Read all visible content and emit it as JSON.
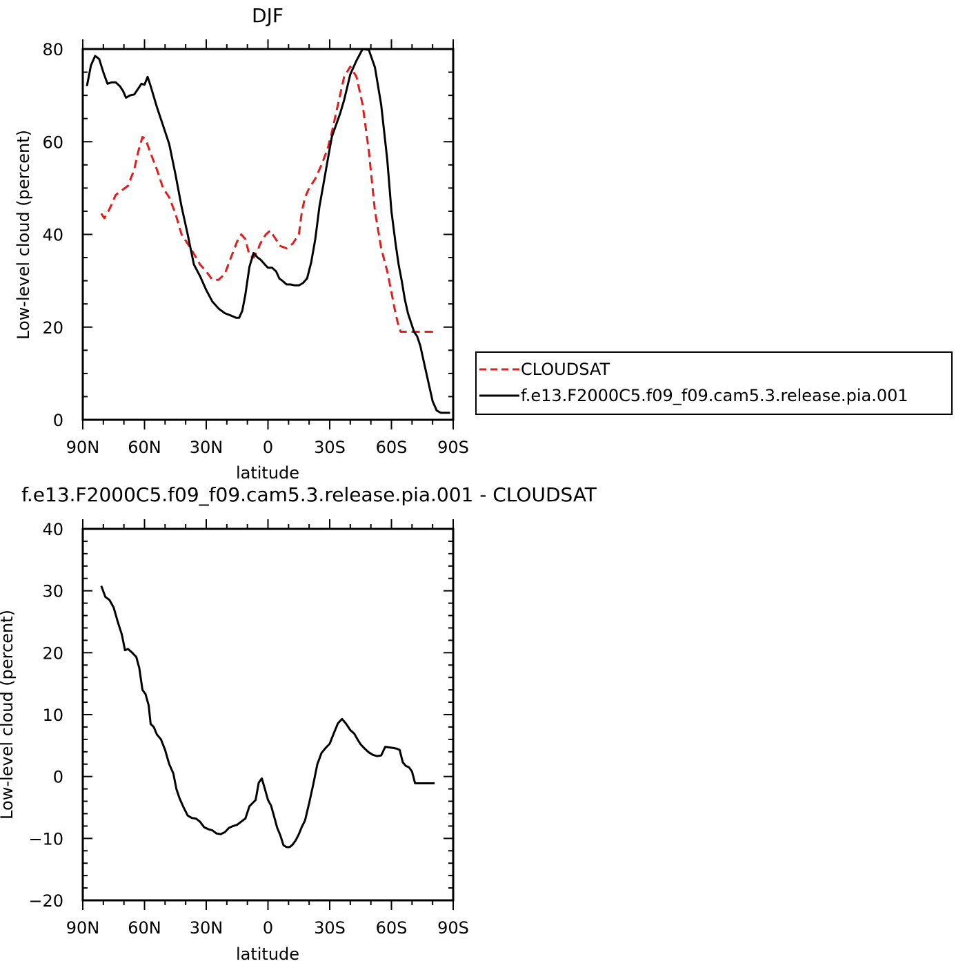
{
  "chart_data": [
    {
      "type": "line",
      "title": "DJF",
      "xlabel": "latitude",
      "ylabel": "Low-level cloud (percent)",
      "ylim": [
        0,
        80
      ],
      "xlim": [
        90,
        -90
      ],
      "x_axis_direction": "north-to-south",
      "xticks": [
        {
          "v": 90,
          "label": "90N"
        },
        {
          "v": 60,
          "label": "60N"
        },
        {
          "v": 30,
          "label": "30N"
        },
        {
          "v": 0,
          "label": "0"
        },
        {
          "v": -30,
          "label": "30S"
        },
        {
          "v": -60,
          "label": "60S"
        },
        {
          "v": -90,
          "label": "90S"
        }
      ],
      "yticks": [
        {
          "v": 0,
          "label": "0"
        },
        {
          "v": 20,
          "label": "20"
        },
        {
          "v": 40,
          "label": "40"
        },
        {
          "v": 60,
          "label": "60"
        },
        {
          "v": 80,
          "label": "80"
        }
      ],
      "legend": {
        "placement": "right",
        "entries": [
          {
            "label": "CLOUDSAT",
            "color": "#e31b1b",
            "dash": "dashed"
          },
          {
            "label": "f.e13.F2000C5.f09_f09.cam5.3.release.pia.001",
            "color": "#000000",
            "dash": "solid"
          }
        ]
      },
      "series": [
        {
          "name": "CLOUDSAT",
          "color": "#e31b1b",
          "dash": "dashed",
          "x": [
            81,
            79.5,
            77,
            74,
            71,
            68,
            65,
            63,
            61,
            59.5,
            57,
            54,
            51,
            48,
            45,
            42,
            39,
            36,
            33,
            30,
            27,
            24,
            21,
            18,
            15,
            13,
            11,
            9,
            7,
            5,
            4,
            2.5,
            1,
            -1,
            -3,
            -6,
            -9,
            -12,
            -15,
            -16.5,
            -18,
            -20,
            -23,
            -26,
            -29,
            -31,
            -33,
            -35,
            -37,
            -40,
            -43,
            -46,
            -49,
            -52,
            -55,
            -58,
            -60,
            -61.5,
            -63,
            -64.5,
            -66,
            -67.5,
            -69,
            -71,
            -73,
            -75,
            -77,
            -79,
            -81
          ],
          "y": [
            44.5,
            43.5,
            45.5,
            48.5,
            49.5,
            50.5,
            54,
            58,
            61,
            60.5,
            57.5,
            54,
            50,
            48,
            44.5,
            40,
            38,
            35.8,
            33.5,
            32,
            30.2,
            30.2,
            31.5,
            35,
            38.5,
            40,
            39,
            35.5,
            35,
            36.5,
            37.8,
            39,
            40,
            40.8,
            39.5,
            37.5,
            37,
            38,
            40,
            45,
            48,
            50,
            52,
            55,
            58.5,
            62,
            66,
            70,
            74,
            76.2,
            74,
            68,
            58,
            45,
            37,
            32,
            27.5,
            24,
            21,
            19,
            19,
            19,
            19,
            19,
            19,
            19,
            19,
            19,
            19
          ],
          "y_note": ""
        },
        {
          "name": "f.e13.F2000C5.f09_f09.cam5.3.release.pia.001",
          "color": "#000000",
          "dash": "solid",
          "x": [
            88,
            86,
            84,
            83,
            82,
            80,
            78,
            76,
            74,
            72,
            70.5,
            69,
            67,
            65,
            63,
            61.5,
            60,
            58.5,
            57,
            54,
            51,
            48,
            45,
            42,
            39,
            36,
            33,
            30,
            27,
            24,
            21,
            18,
            15.5,
            14,
            12.5,
            11,
            9,
            7,
            5,
            3.5,
            1.5,
            0,
            -2,
            -4,
            -5.5,
            -7,
            -9,
            -11,
            -13,
            -15,
            -17,
            -19,
            -21,
            -23,
            -25,
            -27,
            -29,
            -31,
            -33,
            -35,
            -37,
            -40,
            -43,
            -46,
            -49,
            -52,
            -55,
            -58,
            -60,
            -62,
            -63.5,
            -65,
            -66.5,
            -68,
            -69.5,
            -71,
            -72.5,
            -74,
            -76,
            -78,
            -80,
            -82,
            -84,
            -85.5,
            -87,
            -88.5
          ],
          "y": [
            72,
            76.5,
            78.5,
            78.2,
            77.8,
            75,
            72.5,
            72.8,
            72.8,
            72,
            71,
            69.5,
            70,
            70.2,
            71.5,
            72.5,
            72.3,
            74,
            72,
            67.5,
            63.5,
            59.5,
            53,
            46,
            40,
            33.5,
            31,
            28,
            25.5,
            24,
            23,
            22.5,
            22,
            22,
            23.5,
            27,
            33,
            36,
            35,
            34.5,
            33.5,
            32.8,
            32.8,
            32,
            30.5,
            30,
            29.2,
            29.2,
            29,
            29,
            29.5,
            30.5,
            34,
            39,
            46,
            51,
            56,
            61,
            63.5,
            66,
            69,
            74.5,
            77.5,
            80,
            79.8,
            76,
            68,
            56,
            45,
            38,
            33.5,
            30,
            26,
            23,
            21,
            19,
            18,
            16,
            12,
            8,
            4,
            2,
            1.5,
            1.5,
            1.5,
            1.5
          ],
          "y_note": ""
        }
      ]
    },
    {
      "type": "line",
      "title": "f.e13.F2000C5.f09_f09.cam5.3.release.pia.001  -  CLOUDSAT",
      "xlabel": "latitude",
      "ylabel": "Low-level cloud (percent)",
      "ylim": [
        -20,
        40
      ],
      "xlim": [
        90,
        -90
      ],
      "xticks": [
        {
          "v": 90,
          "label": "90N"
        },
        {
          "v": 60,
          "label": "60N"
        },
        {
          "v": 30,
          "label": "30N"
        },
        {
          "v": 0,
          "label": "0"
        },
        {
          "v": -30,
          "label": "30S"
        },
        {
          "v": -60,
          "label": "60S"
        },
        {
          "v": -90,
          "label": "90S"
        }
      ],
      "yticks": [
        {
          "v": -20,
          "label": "−20"
        },
        {
          "v": -10,
          "label": "−10"
        },
        {
          "v": 0,
          "label": "0"
        },
        {
          "v": 10,
          "label": "10"
        },
        {
          "v": 20,
          "label": "20"
        },
        {
          "v": 30,
          "label": "30"
        },
        {
          "v": 40,
          "label": "40"
        }
      ],
      "series": [
        {
          "color": "#000000",
          "dash": "solid",
          "x": [
            81,
            79,
            77,
            75,
            73,
            71,
            69.5,
            68,
            66,
            64,
            62.5,
            61,
            59.5,
            58,
            57,
            55.5,
            54,
            52,
            50,
            48,
            46,
            44.5,
            43,
            41,
            39,
            37,
            35,
            33,
            31,
            29,
            27,
            25,
            23,
            21,
            19,
            17,
            15,
            13,
            11,
            9,
            7.5,
            6,
            4.5,
            3,
            1.5,
            0,
            -1.5,
            -3,
            -4.5,
            -6,
            -7.5,
            -9,
            -10.5,
            -12,
            -13.5,
            -15,
            -16.5,
            -18,
            -20,
            -22,
            -24,
            -26,
            -28,
            -30,
            -32,
            -34,
            -36,
            -38,
            -40,
            -42,
            -43.5,
            -45,
            -47,
            -49,
            -51,
            -53,
            -55,
            -57,
            -59,
            -61,
            -62.5,
            -64,
            -65.5,
            -67,
            -68.5,
            -70,
            -71.5,
            -73,
            -75,
            -77,
            -79,
            -81
          ],
          "y": [
            30.8,
            29,
            28.5,
            27.3,
            25,
            22.9,
            20.4,
            20.6,
            20,
            19.3,
            17.5,
            14,
            13.3,
            11.5,
            8.5,
            8,
            6.8,
            6,
            4.3,
            2,
            0.5,
            -2,
            -3.5,
            -5,
            -6.3,
            -6.7,
            -6.8,
            -7.3,
            -8.2,
            -8.5,
            -8.7,
            -9.2,
            -9.3,
            -9,
            -8.3,
            -8,
            -7.8,
            -7.3,
            -6.8,
            -4.8,
            -4.3,
            -3.8,
            -1,
            -0.3,
            -2,
            -3.8,
            -4.7,
            -6.5,
            -8.3,
            -9.5,
            -11.1,
            -11.4,
            -11.4,
            -11,
            -10.3,
            -9.3,
            -8.1,
            -7.1,
            -4.3,
            -1.3,
            2,
            3.8,
            4.6,
            5.3,
            7,
            8.6,
            9.3,
            8.5,
            7.5,
            6.9,
            6,
            5.2,
            4.5,
            3.9,
            3.5,
            3.3,
            3.4,
            4.8,
            4.7,
            4.6,
            4.5,
            4.3,
            2.3,
            1.7,
            1.5,
            0.8,
            -1.1,
            -1.1,
            -1.1,
            -1.1,
            -1.1,
            -1.1
          ]
        }
      ]
    }
  ]
}
